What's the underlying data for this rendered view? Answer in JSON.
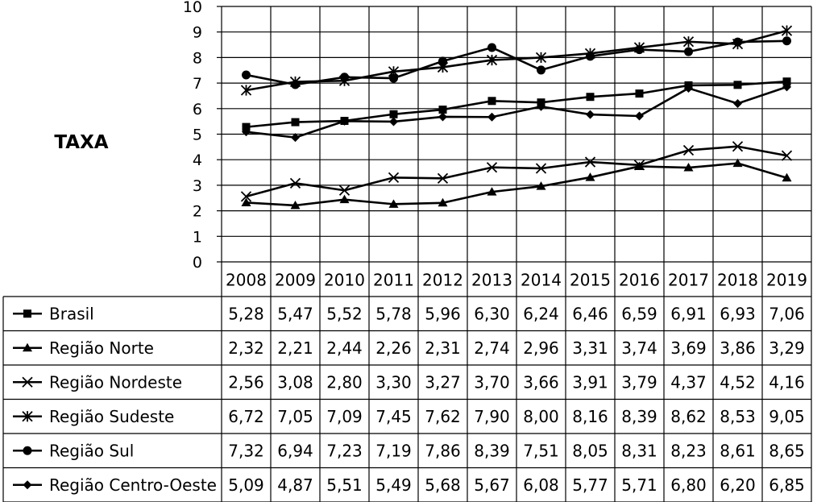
{
  "chart_data": {
    "type": "line",
    "ylabel": "TAXA",
    "ylim": [
      0,
      10
    ],
    "y_ticks": [
      0,
      1,
      2,
      3,
      4,
      5,
      6,
      7,
      8,
      9,
      10
    ],
    "categories": [
      "2008",
      "2009",
      "2010",
      "2011",
      "2012",
      "2013",
      "2014",
      "2015",
      "2016",
      "2017",
      "2018",
      "2019"
    ],
    "series": [
      {
        "name": "Brasil",
        "marker": "square",
        "values": [
          5.28,
          5.47,
          5.52,
          5.78,
          5.96,
          6.3,
          6.24,
          6.46,
          6.59,
          6.91,
          6.93,
          7.06
        ],
        "labels": [
          "5,28",
          "5,47",
          "5,52",
          "5,78",
          "5,96",
          "6,30",
          "6,24",
          "6,46",
          "6,59",
          "6,91",
          "6,93",
          "7,06"
        ]
      },
      {
        "name": "Região Norte",
        "marker": "triangle",
        "values": [
          2.32,
          2.21,
          2.44,
          2.26,
          2.31,
          2.74,
          2.96,
          3.31,
          3.74,
          3.69,
          3.86,
          3.29
        ],
        "labels": [
          "2,32",
          "2,21",
          "2,44",
          "2,26",
          "2,31",
          "2,74",
          "2,96",
          "3,31",
          "3,74",
          "3,69",
          "3,86",
          "3,29"
        ]
      },
      {
        "name": "Região Nordeste",
        "marker": "x",
        "values": [
          2.56,
          3.08,
          2.8,
          3.3,
          3.27,
          3.7,
          3.66,
          3.91,
          3.79,
          4.37,
          4.52,
          4.16
        ],
        "labels": [
          "2,56",
          "3,08",
          "2,80",
          "3,30",
          "3,27",
          "3,70",
          "3,66",
          "3,91",
          "3,79",
          "4,37",
          "4,52",
          "4,16"
        ]
      },
      {
        "name": "Região Sudeste",
        "marker": "star",
        "values": [
          6.72,
          7.05,
          7.09,
          7.45,
          7.62,
          7.9,
          8.0,
          8.16,
          8.39,
          8.62,
          8.53,
          9.05
        ],
        "labels": [
          "6,72",
          "7,05",
          "7,09",
          "7,45",
          "7,62",
          "7,90",
          "8,00",
          "8,16",
          "8,39",
          "8,62",
          "8,53",
          "9,05"
        ]
      },
      {
        "name": "Região Sul",
        "marker": "circle",
        "values": [
          7.32,
          6.94,
          7.23,
          7.19,
          7.86,
          8.39,
          7.51,
          8.05,
          8.31,
          8.23,
          8.61,
          8.65
        ],
        "labels": [
          "7,32",
          "6,94",
          "7,23",
          "7,19",
          "7,86",
          "8,39",
          "7,51",
          "8,05",
          "8,31",
          "8,23",
          "8,61",
          "8,65"
        ]
      },
      {
        "name": "Região Centro-Oeste",
        "marker": "diamond",
        "values": [
          5.09,
          4.87,
          5.51,
          5.49,
          5.68,
          5.67,
          6.08,
          5.77,
          5.71,
          6.8,
          6.2,
          6.85
        ],
        "labels": [
          "5,09",
          "4,87",
          "5,51",
          "5,49",
          "5,68",
          "5,67",
          "6,08",
          "5,77",
          "5,71",
          "6,80",
          "6,20",
          "6,85"
        ]
      }
    ],
    "grid": true,
    "legend": "data-table",
    "line_color": "#000000"
  }
}
